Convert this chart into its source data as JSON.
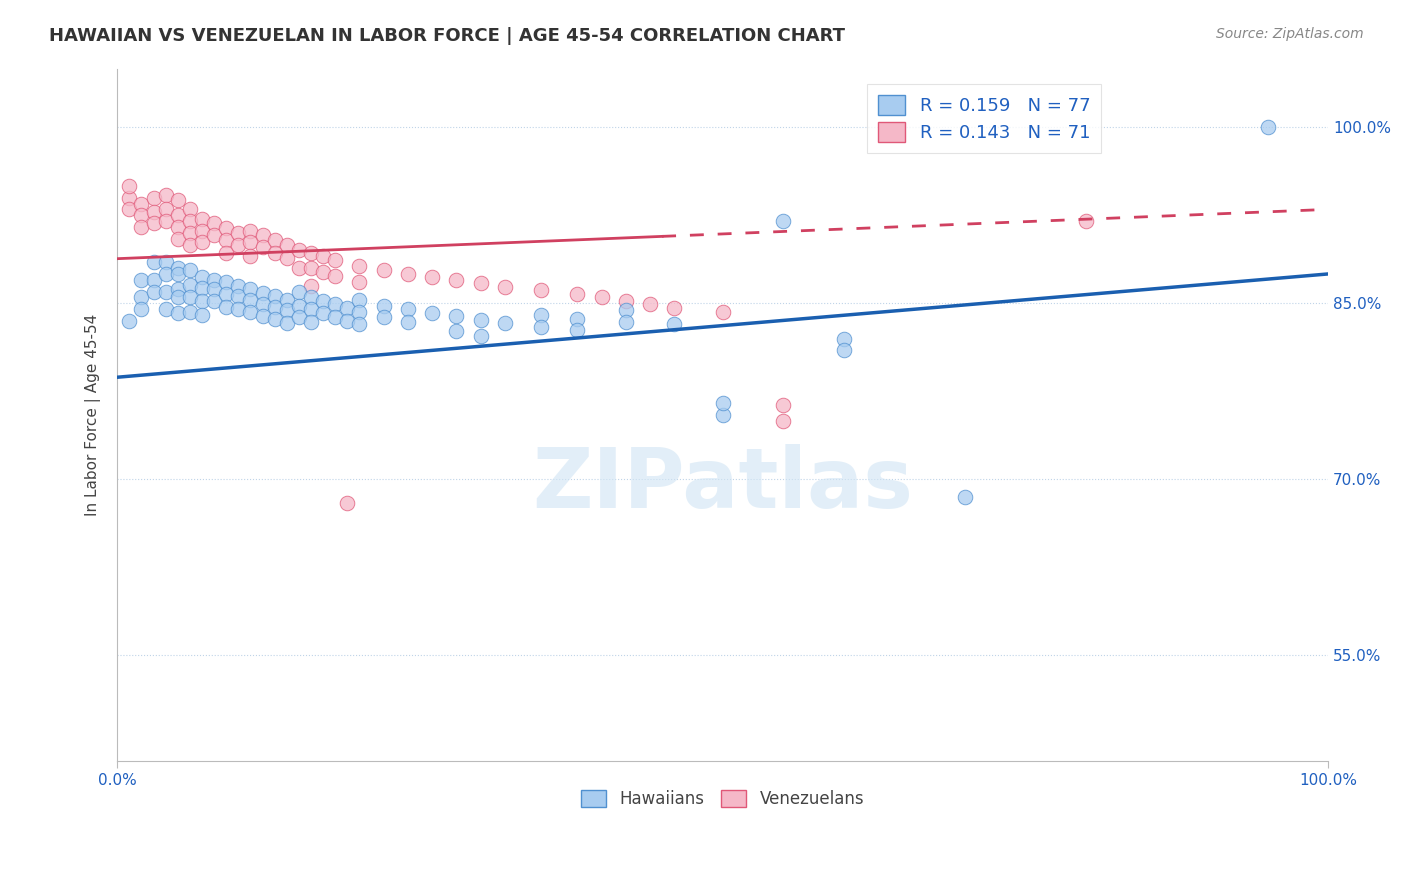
{
  "title": "HAWAIIAN VS VENEZUELAN IN LABOR FORCE | AGE 45-54 CORRELATION CHART",
  "source_text": "Source: ZipAtlas.com",
  "ylabel": "In Labor Force | Age 45-54",
  "xlim": [
    0,
    1
  ],
  "ylim": [
    0.46,
    1.05
  ],
  "yticks": [
    0.55,
    0.7,
    0.85,
    1.0
  ],
  "ytick_labels": [
    "55.0%",
    "70.0%",
    "85.0%",
    "100.0%"
  ],
  "hawaiian_color": "#a8ccf0",
  "hawaiian_edge": "#5090d0",
  "venezuelan_color": "#f5b8c8",
  "venezuelan_edge": "#e05878",
  "hawaiian_R": 0.159,
  "hawaiian_N": 77,
  "venezuelan_R": 0.143,
  "venezuelan_N": 71,
  "regression_blue_color": "#1a5fb0",
  "regression_pink_color": "#d04060",
  "regression_blue_x0": 0.0,
  "regression_blue_y0": 0.787,
  "regression_blue_x1": 1.0,
  "regression_blue_y1": 0.875,
  "regression_pink_solid_x0": 0.0,
  "regression_pink_solid_y0": 0.888,
  "regression_pink_solid_x1": 0.45,
  "regression_pink_solid_y1": 0.907,
  "regression_pink_dash_x0": 0.45,
  "regression_pink_dash_y0": 0.907,
  "regression_pink_dash_x1": 1.0,
  "regression_pink_dash_y1": 0.93,
  "watermark_text": "ZIPatlas",
  "hawaiian_points": [
    [
      0.01,
      0.835
    ],
    [
      0.02,
      0.87
    ],
    [
      0.02,
      0.855
    ],
    [
      0.02,
      0.845
    ],
    [
      0.03,
      0.885
    ],
    [
      0.03,
      0.87
    ],
    [
      0.03,
      0.86
    ],
    [
      0.04,
      0.885
    ],
    [
      0.04,
      0.875
    ],
    [
      0.04,
      0.86
    ],
    [
      0.04,
      0.845
    ],
    [
      0.05,
      0.88
    ],
    [
      0.05,
      0.875
    ],
    [
      0.05,
      0.862
    ],
    [
      0.05,
      0.855
    ],
    [
      0.05,
      0.842
    ],
    [
      0.06,
      0.878
    ],
    [
      0.06,
      0.866
    ],
    [
      0.06,
      0.855
    ],
    [
      0.06,
      0.843
    ],
    [
      0.07,
      0.872
    ],
    [
      0.07,
      0.863
    ],
    [
      0.07,
      0.852
    ],
    [
      0.07,
      0.84
    ],
    [
      0.08,
      0.87
    ],
    [
      0.08,
      0.862
    ],
    [
      0.08,
      0.852
    ],
    [
      0.09,
      0.868
    ],
    [
      0.09,
      0.858
    ],
    [
      0.09,
      0.847
    ],
    [
      0.1,
      0.865
    ],
    [
      0.1,
      0.856
    ],
    [
      0.1,
      0.845
    ],
    [
      0.11,
      0.862
    ],
    [
      0.11,
      0.853
    ],
    [
      0.11,
      0.843
    ],
    [
      0.12,
      0.859
    ],
    [
      0.12,
      0.849
    ],
    [
      0.12,
      0.839
    ],
    [
      0.13,
      0.856
    ],
    [
      0.13,
      0.847
    ],
    [
      0.13,
      0.837
    ],
    [
      0.14,
      0.853
    ],
    [
      0.14,
      0.844
    ],
    [
      0.14,
      0.833
    ],
    [
      0.15,
      0.86
    ],
    [
      0.15,
      0.848
    ],
    [
      0.15,
      0.838
    ],
    [
      0.16,
      0.855
    ],
    [
      0.16,
      0.845
    ],
    [
      0.16,
      0.834
    ],
    [
      0.17,
      0.852
    ],
    [
      0.17,
      0.842
    ],
    [
      0.18,
      0.849
    ],
    [
      0.18,
      0.838
    ],
    [
      0.19,
      0.846
    ],
    [
      0.19,
      0.835
    ],
    [
      0.2,
      0.853
    ],
    [
      0.2,
      0.843
    ],
    [
      0.2,
      0.832
    ],
    [
      0.22,
      0.848
    ],
    [
      0.22,
      0.838
    ],
    [
      0.24,
      0.845
    ],
    [
      0.24,
      0.834
    ],
    [
      0.26,
      0.842
    ],
    [
      0.28,
      0.839
    ],
    [
      0.28,
      0.826
    ],
    [
      0.3,
      0.836
    ],
    [
      0.3,
      0.822
    ],
    [
      0.32,
      0.833
    ],
    [
      0.35,
      0.84
    ],
    [
      0.35,
      0.83
    ],
    [
      0.38,
      0.837
    ],
    [
      0.38,
      0.827
    ],
    [
      0.42,
      0.844
    ],
    [
      0.42,
      0.834
    ],
    [
      0.46,
      0.832
    ],
    [
      0.5,
      0.755
    ],
    [
      0.5,
      0.765
    ],
    [
      0.55,
      0.92
    ],
    [
      0.6,
      0.82
    ],
    [
      0.6,
      0.81
    ],
    [
      0.7,
      0.685
    ],
    [
      0.95,
      1.0
    ]
  ],
  "venezuelan_points": [
    [
      0.01,
      0.94
    ],
    [
      0.01,
      0.93
    ],
    [
      0.01,
      0.95
    ],
    [
      0.02,
      0.935
    ],
    [
      0.02,
      0.925
    ],
    [
      0.02,
      0.915
    ],
    [
      0.03,
      0.94
    ],
    [
      0.03,
      0.928
    ],
    [
      0.03,
      0.918
    ],
    [
      0.04,
      0.942
    ],
    [
      0.04,
      0.93
    ],
    [
      0.04,
      0.92
    ],
    [
      0.05,
      0.938
    ],
    [
      0.05,
      0.925
    ],
    [
      0.05,
      0.915
    ],
    [
      0.05,
      0.905
    ],
    [
      0.06,
      0.93
    ],
    [
      0.06,
      0.92
    ],
    [
      0.06,
      0.91
    ],
    [
      0.06,
      0.9
    ],
    [
      0.07,
      0.922
    ],
    [
      0.07,
      0.912
    ],
    [
      0.07,
      0.902
    ],
    [
      0.08,
      0.918
    ],
    [
      0.08,
      0.908
    ],
    [
      0.09,
      0.914
    ],
    [
      0.09,
      0.904
    ],
    [
      0.09,
      0.893
    ],
    [
      0.1,
      0.91
    ],
    [
      0.1,
      0.9
    ],
    [
      0.11,
      0.912
    ],
    [
      0.11,
      0.902
    ],
    [
      0.11,
      0.89
    ],
    [
      0.12,
      0.908
    ],
    [
      0.12,
      0.898
    ],
    [
      0.13,
      0.904
    ],
    [
      0.13,
      0.893
    ],
    [
      0.14,
      0.9
    ],
    [
      0.14,
      0.889
    ],
    [
      0.15,
      0.895
    ],
    [
      0.15,
      0.88
    ],
    [
      0.16,
      0.893
    ],
    [
      0.16,
      0.88
    ],
    [
      0.16,
      0.865
    ],
    [
      0.17,
      0.89
    ],
    [
      0.17,
      0.877
    ],
    [
      0.18,
      0.887
    ],
    [
      0.18,
      0.873
    ],
    [
      0.19,
      0.68
    ],
    [
      0.2,
      0.882
    ],
    [
      0.2,
      0.868
    ],
    [
      0.22,
      0.878
    ],
    [
      0.24,
      0.875
    ],
    [
      0.26,
      0.872
    ],
    [
      0.28,
      0.87
    ],
    [
      0.3,
      0.867
    ],
    [
      0.32,
      0.864
    ],
    [
      0.35,
      0.861
    ],
    [
      0.38,
      0.858
    ],
    [
      0.4,
      0.855
    ],
    [
      0.42,
      0.852
    ],
    [
      0.44,
      0.849
    ],
    [
      0.46,
      0.846
    ],
    [
      0.5,
      0.843
    ],
    [
      0.55,
      0.75
    ],
    [
      0.55,
      0.763
    ],
    [
      0.8,
      0.92
    ]
  ]
}
